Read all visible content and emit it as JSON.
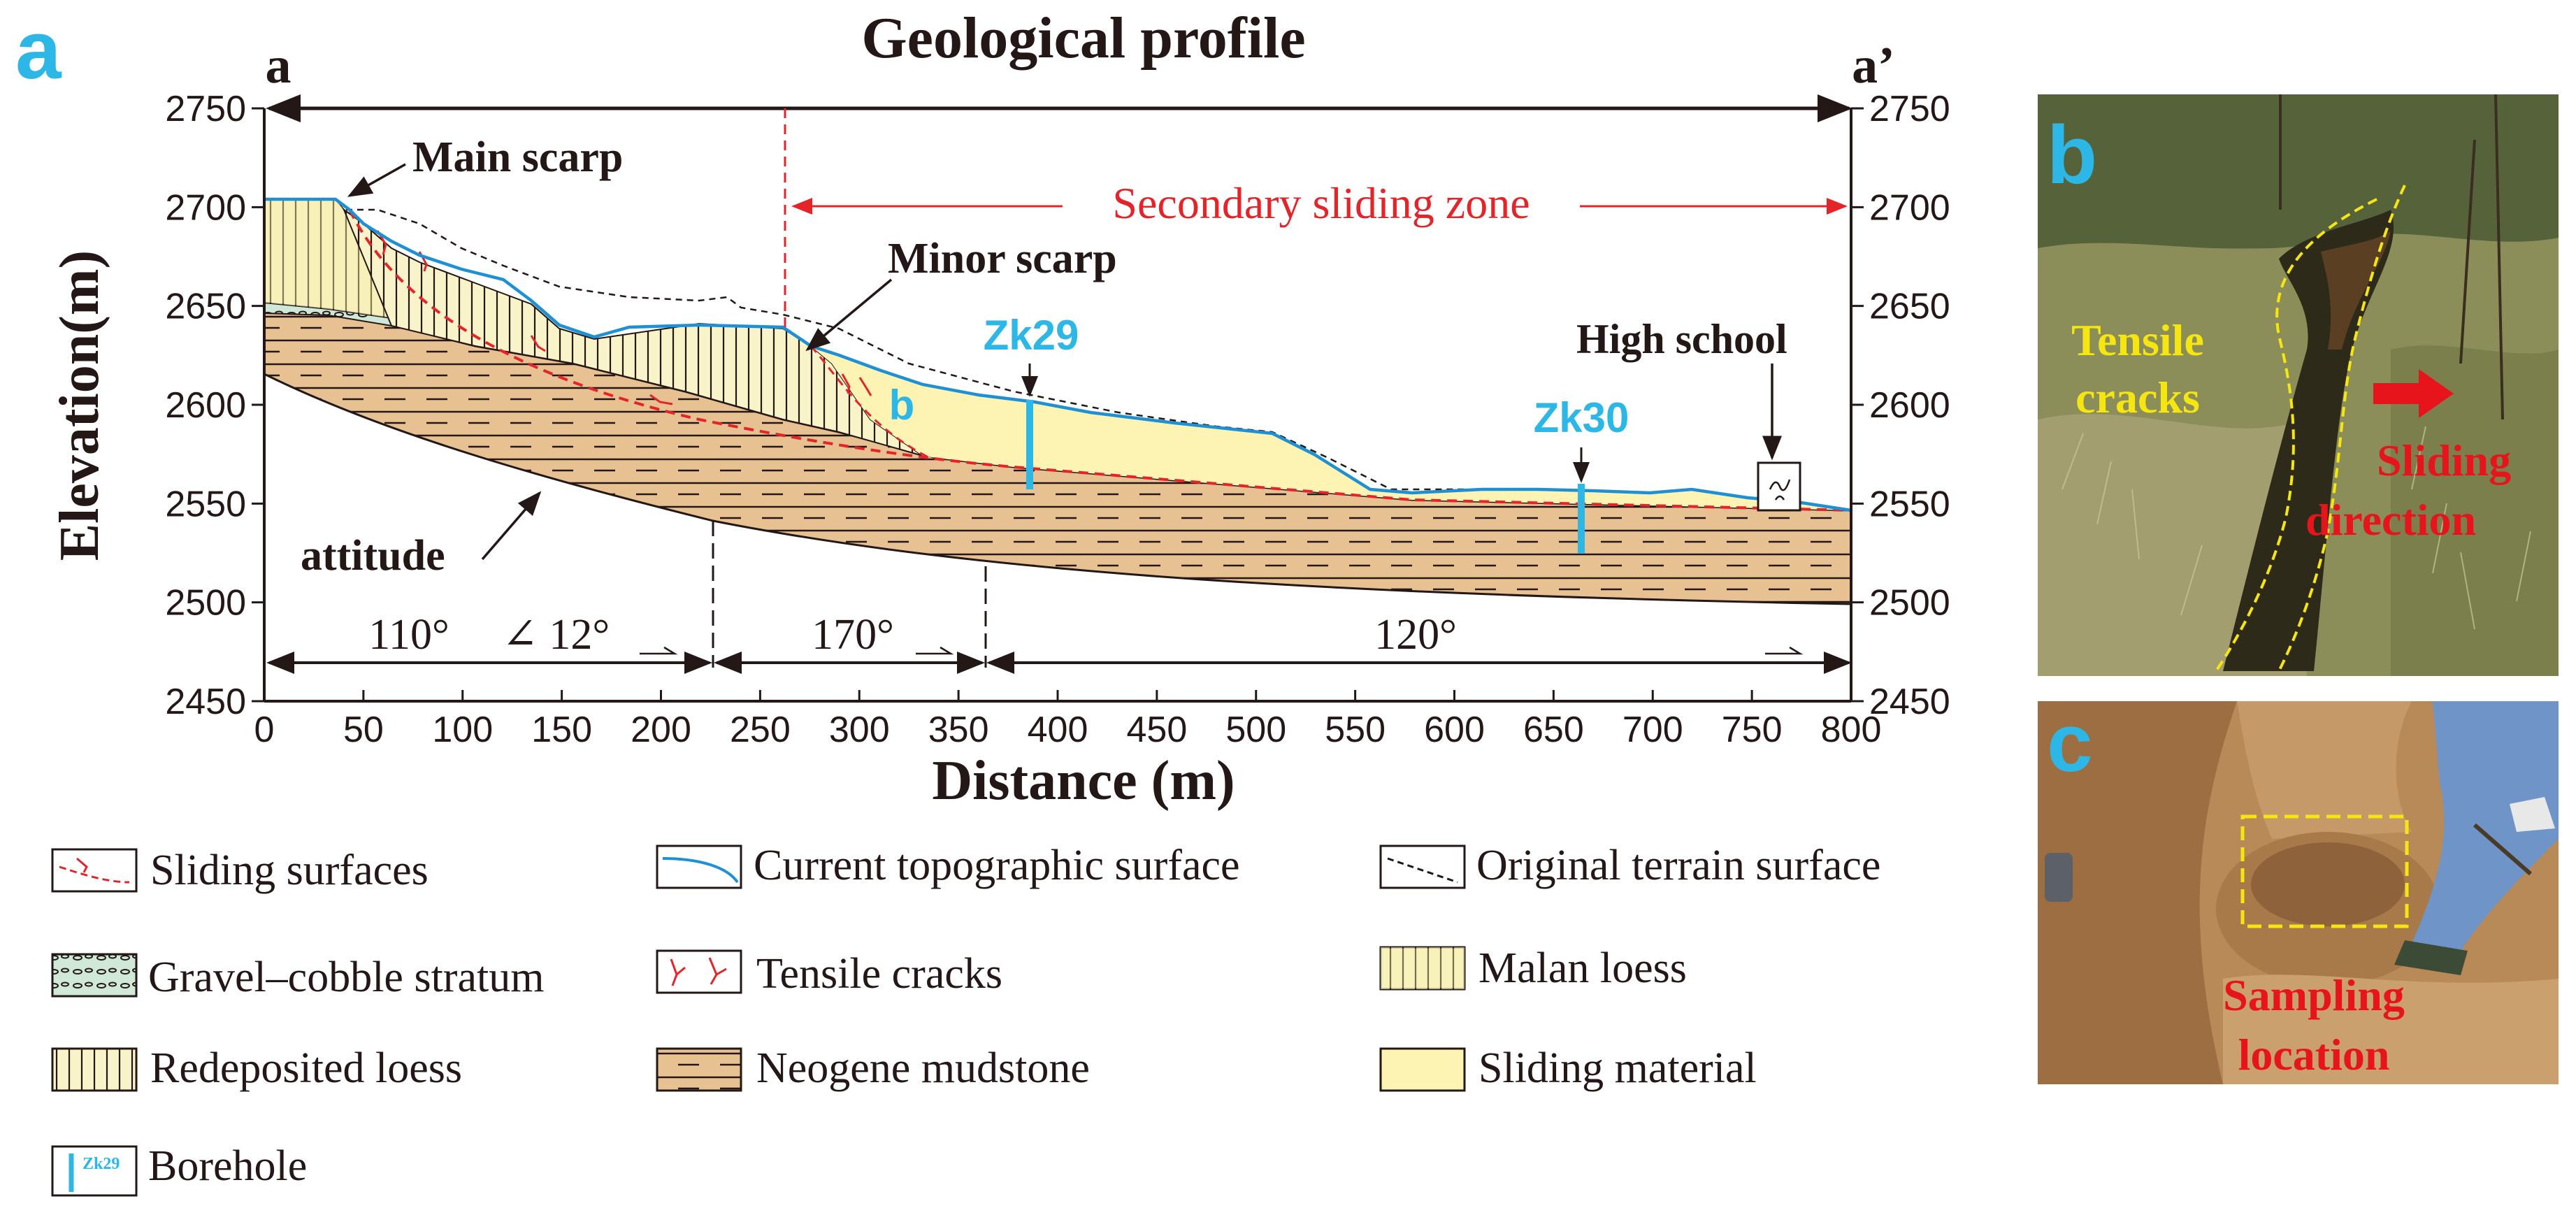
{
  "panel_a": {
    "letter": "a",
    "title": "Geological profile",
    "section_start": "a",
    "section_end": "a’",
    "x_axis_label": "Distance (m)",
    "y_axis_label": "Elevation(m)",
    "x_ticks": [
      "0",
      "50",
      "100",
      "150",
      "200",
      "250",
      "300",
      "350",
      "400",
      "450",
      "500",
      "550",
      "600",
      "650",
      "700",
      "750",
      "800"
    ],
    "y_ticks": [
      "2750",
      "2700",
      "2650",
      "2600",
      "2550",
      "2500",
      "2450"
    ],
    "annotations": {
      "main_scarp": "Main scarp",
      "minor_scarp": "Minor scarp",
      "secondary_zone": "Secondary sliding zone",
      "high_school": "High school",
      "attitude": "attitude",
      "b_marker": "b",
      "zk29": "Zk29",
      "zk30": "Zk30"
    },
    "attitudes": {
      "seg1_dir": "110°",
      "seg1_dip": "∠ 12°",
      "seg2_dir": "170°",
      "seg3_dir": "120°"
    },
    "colors": {
      "slide": "#FDF3B2",
      "mudstone": "#E8C193",
      "loess_fill": "#F8F3C8",
      "topo": "#1E90D6",
      "sliding_surface": "#E5242A",
      "borehole": "#2CB7E6",
      "axis": "#231815"
    }
  },
  "legend": {
    "sliding_surfaces": "Sliding surfaces",
    "current_topo": "Current topographic surface",
    "original_terrain": "Original terrain surface",
    "gravel": "Gravel–cobble stratum",
    "tensile_cracks": "Tensile cracks",
    "malan_loess": "Malan loess",
    "redeposited_loess": "Redeposited loess",
    "neogene_mudstone": "Neogene mudstone",
    "sliding_material": "Sliding material",
    "borehole": "Borehole",
    "borehole_icon_text": "Zk29"
  },
  "panel_b": {
    "letter": "b",
    "tensile_cracks": [
      "Tensile",
      "cracks"
    ],
    "sliding_direction": [
      "Sliding",
      "direction"
    ]
  },
  "panel_c": {
    "letter": "c",
    "sampling_location": [
      "Sampling",
      "location"
    ]
  }
}
